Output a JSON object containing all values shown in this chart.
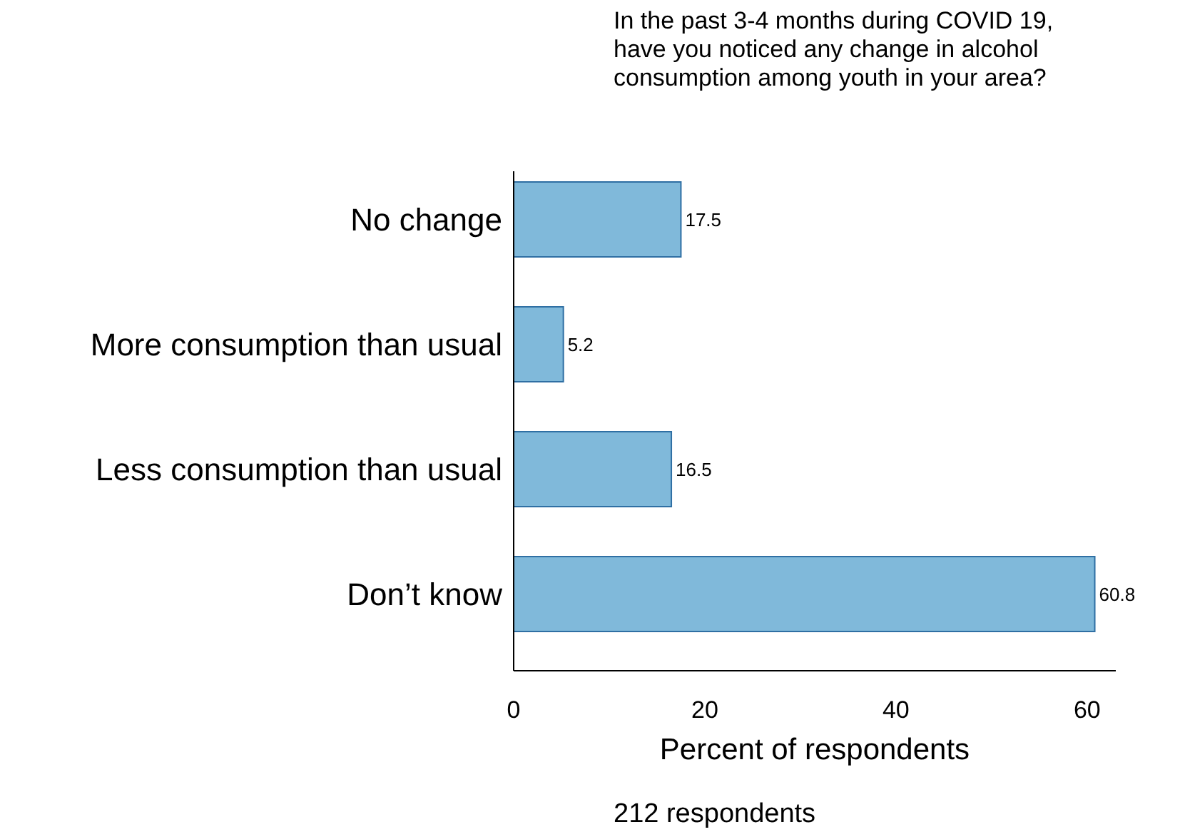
{
  "chart_data": {
    "type": "bar",
    "orientation": "horizontal",
    "title": "In the past 3-4 months during COVID 19, have you noticed any change in alcohol consumption among youth in your area?",
    "categories": [
      "No change",
      "More consumption than usual",
      "Less consumption than usual",
      "Don’t know"
    ],
    "values": [
      17.5,
      5.2,
      16.5,
      60.8
    ],
    "color": "#80b9da",
    "data_labels": true,
    "xlim": [
      0,
      63
    ],
    "xticks": [
      0,
      20,
      40,
      60
    ],
    "xlabel": "Percent of respondents",
    "grid": false,
    "annotations": [
      "212 respondents"
    ]
  }
}
